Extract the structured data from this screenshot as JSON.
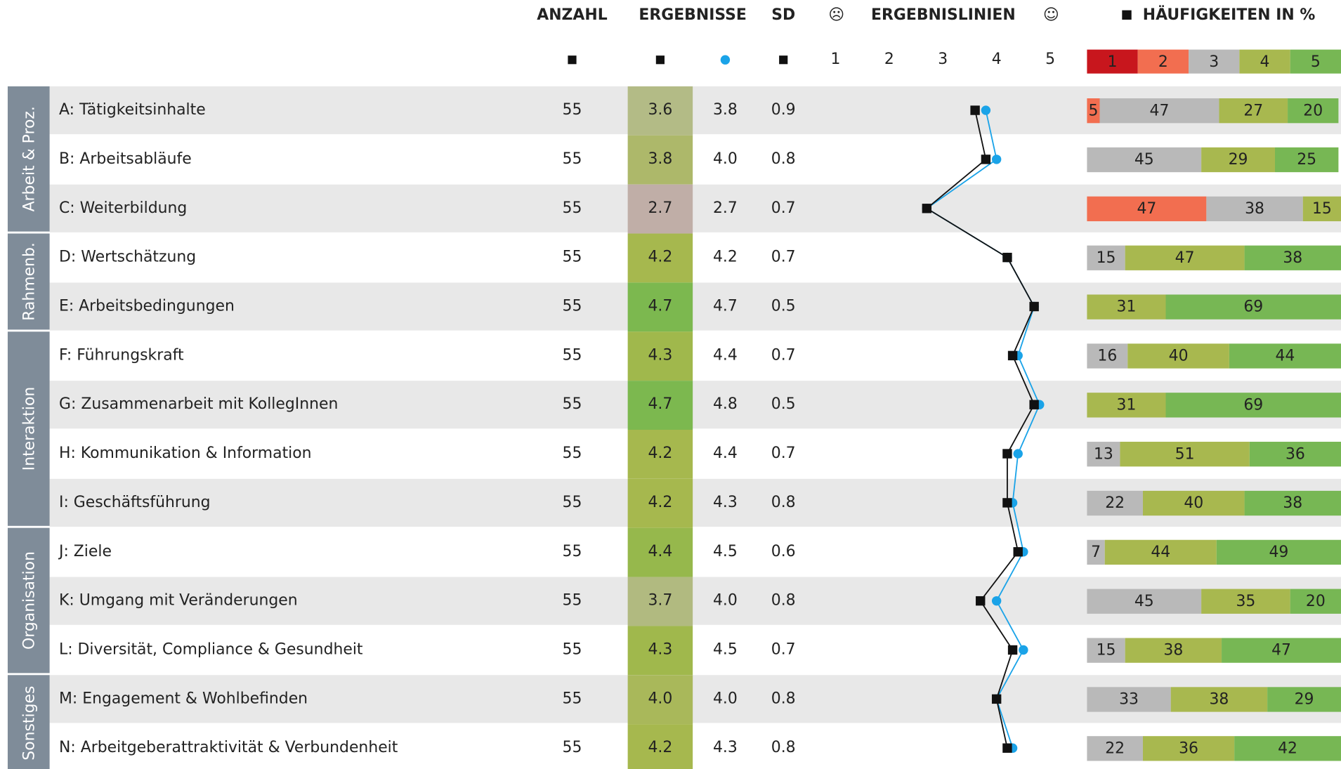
{
  "header": {
    "anzahl": "ANZAHL",
    "ergebnisse": "ERGEBNISSE",
    "sd": "SD",
    "sad": "☹",
    "lines": "ERGEBNISLINIEN",
    "happy": "☺",
    "freq": "HÄUFIGKEITEN IN %"
  },
  "scale": {
    "xlim": [
      1,
      5
    ],
    "xticks": [
      1,
      2,
      3,
      4,
      5
    ],
    "mean_color": "#111111",
    "mean2_color": "#1aa3e8"
  },
  "freq_legend": {
    "categories": [
      1,
      2,
      3,
      4,
      5
    ],
    "colors": [
      "#c8161d",
      "#f26e50",
      "#b9b9b9",
      "#a8b84f",
      "#77b754"
    ],
    "xlim": [
      0,
      100
    ]
  },
  "groups": [
    {
      "label": "Arbeit & Proz.",
      "rows": [
        {
          "label": "A: Tätigkeitsinhalte",
          "n": 55,
          "mean": 3.6,
          "mean_color": "#b3bb86",
          "mean2": 3.8,
          "sd": 0.9,
          "freq": [
            null,
            5,
            47,
            27,
            20
          ]
        },
        {
          "label": "B: Arbeitsabläufe",
          "n": 55,
          "mean": 3.8,
          "mean_color": "#adb86a",
          "mean2": 4,
          "mean2_label": "4.0",
          "sd": 0.8,
          "freq": [
            null,
            null,
            45,
            29,
            25
          ]
        },
        {
          "label": "C: Weiterbildung",
          "n": 55,
          "mean": 2.7,
          "mean_color": "#c0aea7",
          "mean2": 2.7,
          "sd": 0.7,
          "freq": [
            null,
            47,
            38,
            15,
            null
          ]
        }
      ]
    },
    {
      "label": "Rahmenb.",
      "rows": [
        {
          "label": "D: Wertschätzung",
          "n": 55,
          "mean": 4.2,
          "mean_color": "#a6b84e",
          "mean2": 4.2,
          "sd": 0.7,
          "freq": [
            null,
            null,
            15,
            47,
            38
          ]
        },
        {
          "label": "E: Arbeitsbedingungen",
          "n": 55,
          "mean": 4.7,
          "mean_color": "#7cb84f",
          "mean2": 4.7,
          "sd": 0.5,
          "freq": [
            null,
            null,
            null,
            31,
            69
          ]
        }
      ]
    },
    {
      "label": "Interaktion",
      "rows": [
        {
          "label": "F: Führungskraft",
          "n": 55,
          "mean": 4.3,
          "mean_color": "#a0b84c",
          "mean2": 4.4,
          "sd": 0.7,
          "freq": [
            null,
            null,
            16,
            40,
            44
          ]
        },
        {
          "label": "G: Zusammenarbeit mit KollegInnen",
          "n": 55,
          "mean": 4.7,
          "mean_color": "#7cb84f",
          "mean2": 4.8,
          "sd": 0.5,
          "freq": [
            null,
            null,
            null,
            31,
            69
          ]
        },
        {
          "label": "H: Kommunikation & Information",
          "n": 55,
          "mean": 4.2,
          "mean_color": "#a6b84e",
          "mean2": 4.4,
          "sd": 0.7,
          "freq": [
            null,
            null,
            13,
            51,
            36
          ]
        },
        {
          "label": "I: Geschäftsführung",
          "n": 55,
          "mean": 4.2,
          "mean_color": "#a6b84e",
          "mean2": 4.3,
          "sd": 0.8,
          "freq": [
            null,
            null,
            22,
            40,
            38
          ]
        }
      ]
    },
    {
      "label": "Organisation",
      "rows": [
        {
          "label": "J: Ziele",
          "n": 55,
          "mean": 4.4,
          "mean_color": "#96b84c",
          "mean2": 4.5,
          "sd": 0.6,
          "freq": [
            null,
            null,
            7,
            44,
            49
          ]
        },
        {
          "label": "K: Umgang mit Veränderungen",
          "n": 55,
          "mean": 3.7,
          "mean_color": "#b1ba80",
          "mean2": 4,
          "mean2_label": "4.0",
          "sd": 0.8,
          "freq": [
            null,
            null,
            45,
            35,
            20
          ]
        },
        {
          "label": "L: Diversität, Compliance & Gesundheit",
          "n": 55,
          "mean": 4.3,
          "mean_color": "#a0b84c",
          "mean2": 4.5,
          "sd": 0.7,
          "freq": [
            null,
            null,
            15,
            38,
            47
          ]
        }
      ]
    },
    {
      "label": "Sonstiges",
      "rows": [
        {
          "label": "M: Engagement & Wohlbefinden",
          "n": 55,
          "mean": 4,
          "mean_label": "4.0",
          "mean_color": "#a9b85a",
          "mean2": 4,
          "mean2_label": "4.0",
          "sd": 0.8,
          "freq": [
            null,
            null,
            33,
            38,
            29
          ]
        },
        {
          "label": "N: Arbeitgeberattraktivität & Verbundenheit",
          "n": 55,
          "mean": 4.2,
          "mean_color": "#a6b84e",
          "mean2": 4.3,
          "sd": 0.8,
          "freq": [
            null,
            null,
            22,
            36,
            42
          ]
        }
      ]
    }
  ]
}
